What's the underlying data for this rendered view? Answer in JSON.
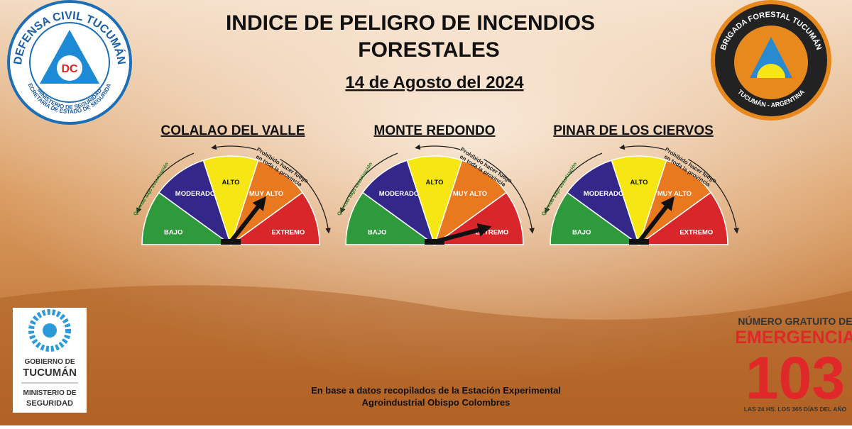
{
  "header": {
    "title_lines": [
      "INDICE DE PELIGRO DE INCENDIOS",
      "FORESTALES"
    ],
    "date": "14 de Agosto del 2024"
  },
  "levels": [
    {
      "label": "BAJO",
      "color": "#2f9a3c"
    },
    {
      "label": "MODERADO",
      "color": "#33288a"
    },
    {
      "label": "ALTO",
      "color": "#f5e614"
    },
    {
      "label": "MUY ALTO",
      "color": "#e8791e"
    },
    {
      "label": "EXTREMO",
      "color": "#d8262a"
    }
  ],
  "gauge_notes": {
    "left": "Quemas bajo autorización",
    "right_lines": [
      "Prohibido hacer fuego",
      "en toda la provincia"
    ]
  },
  "gauges": [
    {
      "name": "COLALAO DEL VALLE",
      "level_index": 3
    },
    {
      "name": "MONTE REDONDO",
      "level_index": 4
    },
    {
      "name": "PINAR DE LOS CIERVOS",
      "level_index": 3
    }
  ],
  "footer": {
    "lines": [
      "En base a datos recopilados de la Estación Experimental",
      "Agroindustrial  Obispo Colombres"
    ]
  },
  "logo_left": {
    "top": "DEFENSA CIVIL TUCUMÁN",
    "badge": "DC",
    "bottom_lines": [
      "SECRETARÍA DE ESTADO DE SEGURIDAD",
      "MINISTERIO DE SEGURIDAD"
    ]
  },
  "logo_right": {
    "top": "BRIGADA FORESTAL TUCUMÁN",
    "bottom": "TUCUMÁN - ARGENTINA"
  },
  "government": {
    "lines": [
      "GOBIERNO DE",
      "TUCUMÁN",
      "MINISTERIO DE",
      "SEGURIDAD"
    ]
  },
  "emergency": {
    "intro": "NÚMERO GRATUITO DE",
    "word": "EMERGENCIA",
    "number": "103",
    "note": "LAS 24 HS. LOS 365 DÍAS DEL AÑO"
  }
}
